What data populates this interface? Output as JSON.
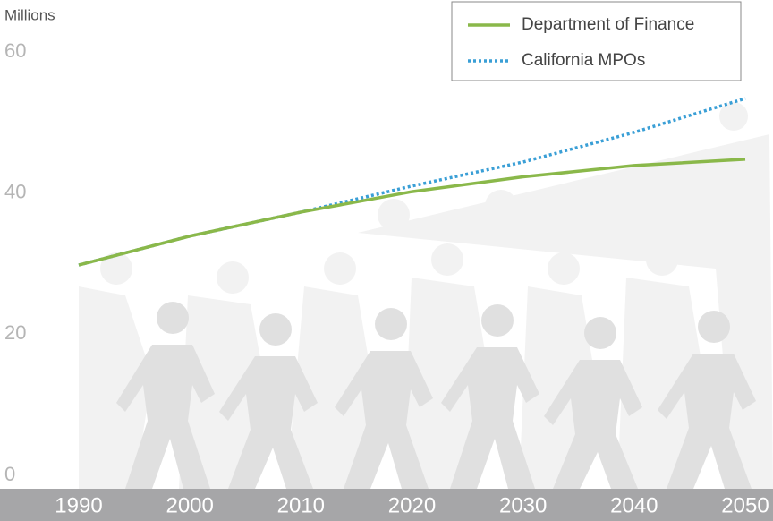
{
  "chart_data": {
    "type": "line",
    "y_axis_label": "Millions",
    "x": [
      1990,
      2000,
      2010,
      2020,
      2030,
      2040,
      2050
    ],
    "xlim": [
      1990,
      2050
    ],
    "xticks": [
      1990,
      2000,
      2010,
      2020,
      2030,
      2040,
      2050
    ],
    "ylim": [
      0,
      60
    ],
    "yticks": [
      0,
      20,
      40,
      60
    ],
    "series": [
      {
        "name": "Department of Finance",
        "color": "#8ab84a",
        "style": "solid",
        "values": [
          29.8,
          33.9,
          37.3,
          40.2,
          42.3,
          43.9,
          44.8
        ]
      },
      {
        "name": "California MPOs",
        "color": "#3a9fd6",
        "style": "dotted",
        "values": [
          29.8,
          33.9,
          37.3,
          41,
          44.4,
          48.6,
          53.4
        ]
      }
    ],
    "legend": "top-right"
  }
}
